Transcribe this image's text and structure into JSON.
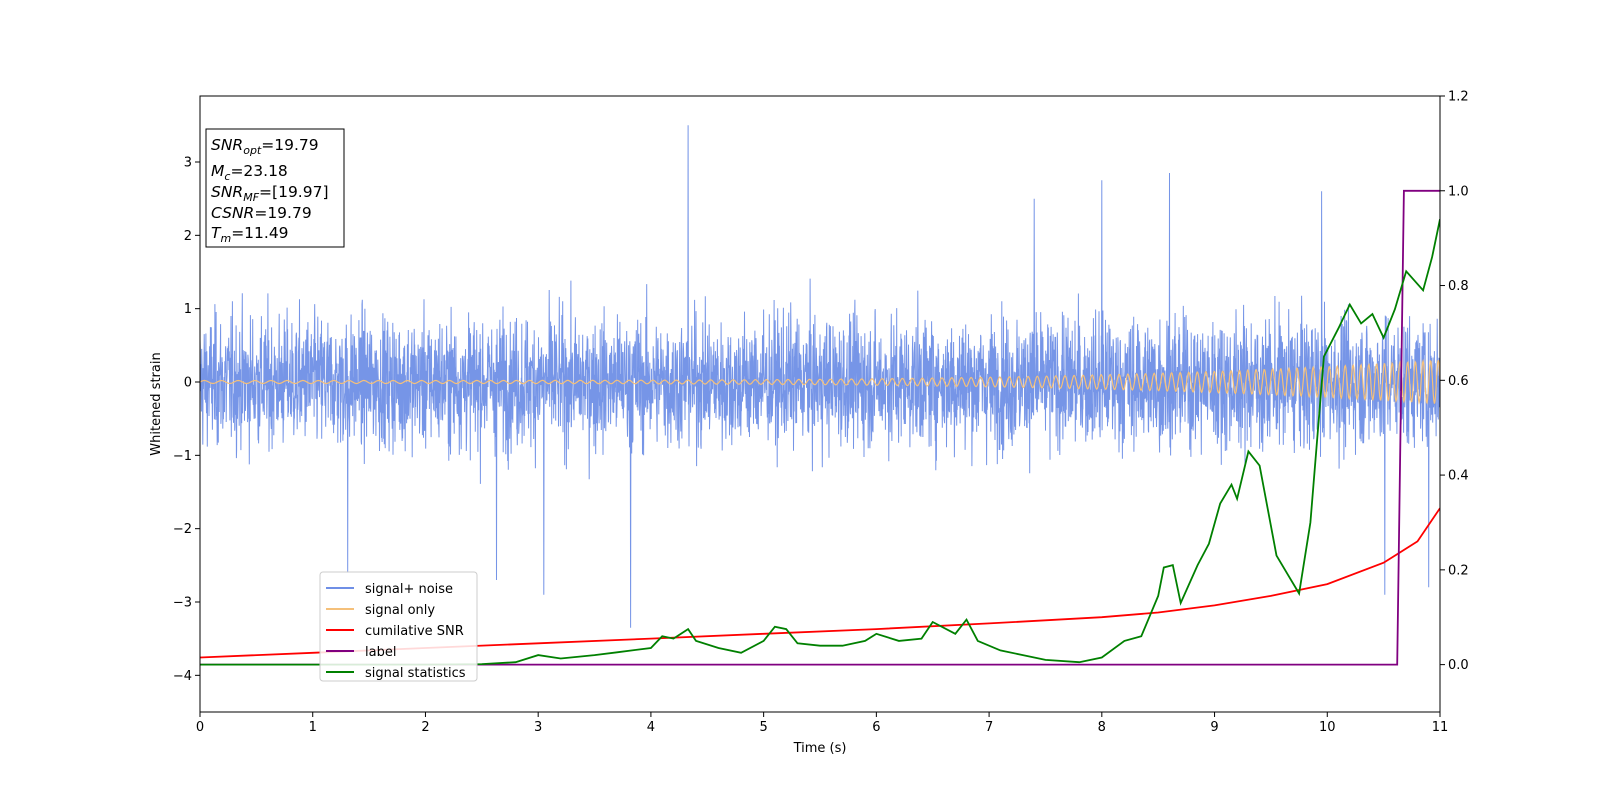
{
  "chart_data": {
    "type": "line",
    "title": "",
    "xlabel": "Time (s)",
    "ylabel": "Whitened strain",
    "ylabel_right": "",
    "xlim": [
      0,
      11
    ],
    "ylim": [
      -4.5,
      3.9
    ],
    "ylim_right": [
      -0.1,
      1.2
    ],
    "x_ticks": [
      "0",
      "1",
      "2",
      "3",
      "4",
      "5",
      "6",
      "7",
      "8",
      "9",
      "10",
      "11"
    ],
    "y_ticks": [
      "3",
      "2",
      "1",
      "0",
      "−1",
      "−2",
      "−3",
      "−4"
    ],
    "y_ticks_right": [
      "0.0",
      "0.2",
      "0.4",
      "0.6",
      "0.8",
      "1.0",
      "1.2"
    ],
    "grid": false,
    "legend_position": "lower-left",
    "colors": {
      "signal_noise": "#6f8fe6",
      "signal_only": "#f5c07a",
      "cumulative_snr": "#ff0000",
      "label": "#800080",
      "signal_statistics": "#008000"
    },
    "info_box": [
      {
        "symbol": "SNR",
        "sub": "opt",
        "value": "=19.79"
      },
      {
        "symbol": "M",
        "sub": "c",
        "value": "=23.18"
      },
      {
        "symbol": "SNR",
        "sub": "MF",
        "value": "=[19.97]"
      },
      {
        "symbol": "CSNR",
        "sub": "",
        "value": "=19.79"
      },
      {
        "symbol": "T",
        "sub": "m",
        "value": "=11.49"
      }
    ],
    "series": [
      {
        "name": "signal+ noise",
        "axis": "left",
        "envelope": {
          "low": -1.9,
          "high": 1.9,
          "extreme_low": -3.3,
          "extreme_high": 3.5
        },
        "spikes": [
          [
            4.33,
            3.5
          ],
          [
            8.0,
            2.75
          ],
          [
            8.6,
            2.85
          ],
          [
            1.31,
            -2.6
          ],
          [
            3.82,
            -3.35
          ],
          [
            2.63,
            -2.7
          ],
          [
            3.05,
            -2.9
          ],
          [
            10.51,
            -2.9
          ],
          [
            10.9,
            -2.8
          ],
          [
            9.95,
            2.6
          ],
          [
            7.4,
            2.5
          ]
        ]
      },
      {
        "name": "signal only",
        "axis": "left",
        "amplitude_start": 0.02,
        "amplitude_end": 0.3
      },
      {
        "name": "cumilative SNR",
        "axis": "right",
        "points": [
          [
            0,
            0.015
          ],
          [
            1,
            0.025
          ],
          [
            2,
            0.035
          ],
          [
            3,
            0.045
          ],
          [
            4,
            0.055
          ],
          [
            5,
            0.065
          ],
          [
            6,
            0.075
          ],
          [
            7,
            0.087
          ],
          [
            8,
            0.1
          ],
          [
            8.5,
            0.11
          ],
          [
            9,
            0.125
          ],
          [
            9.5,
            0.145
          ],
          [
            10,
            0.17
          ],
          [
            10.5,
            0.215
          ],
          [
            10.8,
            0.26
          ],
          [
            11,
            0.33
          ]
        ]
      },
      {
        "name": "label",
        "axis": "right",
        "points": [
          [
            0,
            0.0
          ],
          [
            10.62,
            0.0
          ],
          [
            10.68,
            1.0
          ],
          [
            11,
            1.0
          ]
        ]
      },
      {
        "name": "signal statistics",
        "axis": "right",
        "points": [
          [
            0,
            0.0
          ],
          [
            0.5,
            0.0
          ],
          [
            1,
            0.0
          ],
          [
            1.5,
            0.0
          ],
          [
            2,
            0.0
          ],
          [
            2.5,
            0.001
          ],
          [
            2.8,
            0.005
          ],
          [
            3.0,
            0.02
          ],
          [
            3.2,
            0.013
          ],
          [
            3.5,
            0.02
          ],
          [
            3.7,
            0.026
          ],
          [
            4.0,
            0.035
          ],
          [
            4.1,
            0.06
          ],
          [
            4.2,
            0.055
          ],
          [
            4.33,
            0.075
          ],
          [
            4.4,
            0.05
          ],
          [
            4.6,
            0.035
          ],
          [
            4.8,
            0.025
          ],
          [
            5.0,
            0.05
          ],
          [
            5.1,
            0.08
          ],
          [
            5.2,
            0.075
          ],
          [
            5.3,
            0.045
          ],
          [
            5.5,
            0.04
          ],
          [
            5.7,
            0.04
          ],
          [
            5.9,
            0.05
          ],
          [
            6.0,
            0.065
          ],
          [
            6.2,
            0.05
          ],
          [
            6.4,
            0.055
          ],
          [
            6.5,
            0.09
          ],
          [
            6.7,
            0.065
          ],
          [
            6.8,
            0.095
          ],
          [
            6.9,
            0.05
          ],
          [
            7.1,
            0.03
          ],
          [
            7.3,
            0.02
          ],
          [
            7.5,
            0.01
          ],
          [
            7.8,
            0.005
          ],
          [
            8.0,
            0.015
          ],
          [
            8.2,
            0.05
          ],
          [
            8.35,
            0.06
          ],
          [
            8.5,
            0.145
          ],
          [
            8.55,
            0.205
          ],
          [
            8.63,
            0.21
          ],
          [
            8.7,
            0.13
          ],
          [
            8.85,
            0.21
          ],
          [
            8.95,
            0.255
          ],
          [
            9.05,
            0.34
          ],
          [
            9.15,
            0.38
          ],
          [
            9.2,
            0.35
          ],
          [
            9.3,
            0.45
          ],
          [
            9.4,
            0.42
          ],
          [
            9.55,
            0.23
          ],
          [
            9.65,
            0.19
          ],
          [
            9.75,
            0.15
          ],
          [
            9.85,
            0.3
          ],
          [
            9.97,
            0.65
          ],
          [
            10.1,
            0.71
          ],
          [
            10.2,
            0.76
          ],
          [
            10.3,
            0.72
          ],
          [
            10.4,
            0.74
          ],
          [
            10.5,
            0.69
          ],
          [
            10.6,
            0.75
          ],
          [
            10.7,
            0.83
          ],
          [
            10.85,
            0.79
          ],
          [
            10.93,
            0.86
          ],
          [
            11,
            0.94
          ]
        ]
      }
    ]
  }
}
